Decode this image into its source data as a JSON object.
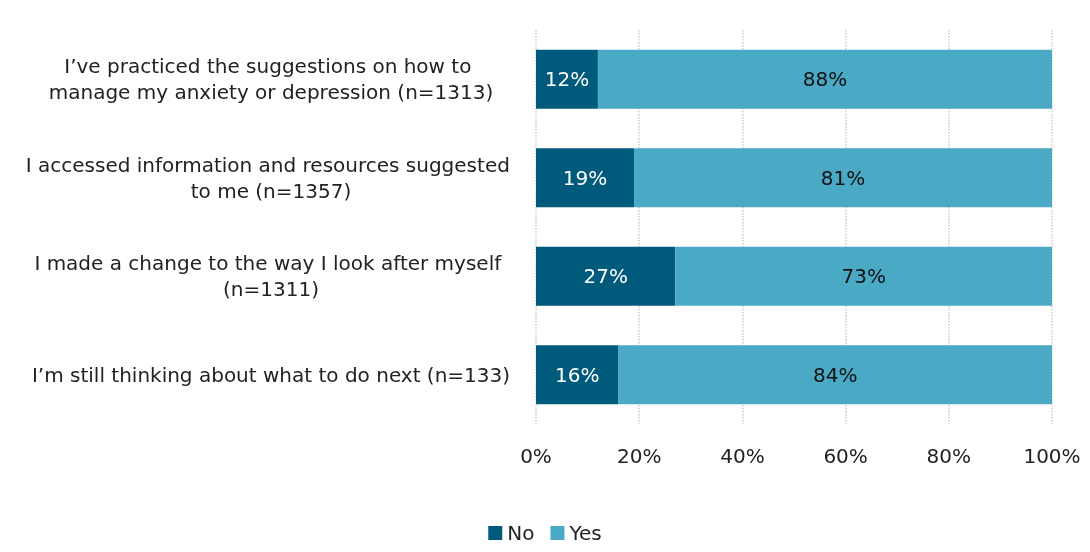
{
  "chart_data": {
    "type": "bar",
    "orientation": "horizontal",
    "stacked": true,
    "categories": [
      "I’ve practiced the suggestions on how to manage my anxiety or depression (n=1313)",
      "I accessed information and resources suggested to me (n=1357)",
      "I made a change to the way I look after myself (n=1311)",
      "I’m still thinking about what to do next (n=133)"
    ],
    "series": [
      {
        "name": "No",
        "color": "#005a7c",
        "values": [
          12,
          19,
          27,
          16
        ],
        "value_labels": [
          "12%",
          "19%",
          "27%",
          "16%"
        ]
      },
      {
        "name": "Yes",
        "color": "#4aa9c5",
        "values": [
          88,
          81,
          73,
          84
        ],
        "value_labels": [
          "88%",
          "81%",
          "73%",
          "84%"
        ]
      }
    ],
    "xlim": [
      0,
      100
    ],
    "xticks": [
      {
        "value": 0,
        "label": "0%"
      },
      {
        "value": 20,
        "label": "20%"
      },
      {
        "value": 40,
        "label": "40%"
      },
      {
        "value": 60,
        "label": "60%"
      },
      {
        "value": 80,
        "label": "80%"
      },
      {
        "value": 100,
        "label": "100%"
      }
    ],
    "grid": "x",
    "legend": "bottom"
  }
}
